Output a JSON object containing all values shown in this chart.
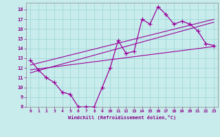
{
  "xlabel": "Windchill (Refroidissement éolien,°C)",
  "bg_color": "#c8ecec",
  "grid_color": "#a0d8d8",
  "line_color": "#990099",
  "xlim": [
    -0.5,
    23.5
  ],
  "ylim": [
    8,
    18.7
  ],
  "xticks": [
    0,
    1,
    2,
    3,
    4,
    5,
    6,
    7,
    8,
    9,
    10,
    11,
    12,
    13,
    14,
    15,
    16,
    17,
    18,
    19,
    20,
    21,
    22,
    23
  ],
  "yticks": [
    8,
    9,
    10,
    11,
    12,
    13,
    14,
    15,
    16,
    17,
    18
  ],
  "curve1_x": [
    0,
    1,
    2,
    3,
    4,
    5,
    6,
    7,
    8,
    9,
    10,
    11,
    12,
    13,
    14,
    15,
    16,
    17,
    18,
    19,
    20,
    21,
    22,
    23
  ],
  "curve1_y": [
    12.8,
    11.8,
    11.0,
    10.5,
    9.5,
    9.3,
    8.0,
    8.0,
    8.0,
    10.0,
    12.0,
    14.8,
    13.5,
    13.7,
    17.0,
    16.5,
    18.3,
    17.5,
    16.5,
    16.8,
    16.5,
    15.8,
    14.5,
    14.3
  ],
  "line1_x": [
    0,
    23
  ],
  "line1_y": [
    11.8,
    14.2
  ],
  "line2_x": [
    0,
    23
  ],
  "line2_y": [
    11.5,
    16.7
  ],
  "line3_x": [
    0,
    23
  ],
  "line3_y": [
    12.3,
    17.0
  ]
}
